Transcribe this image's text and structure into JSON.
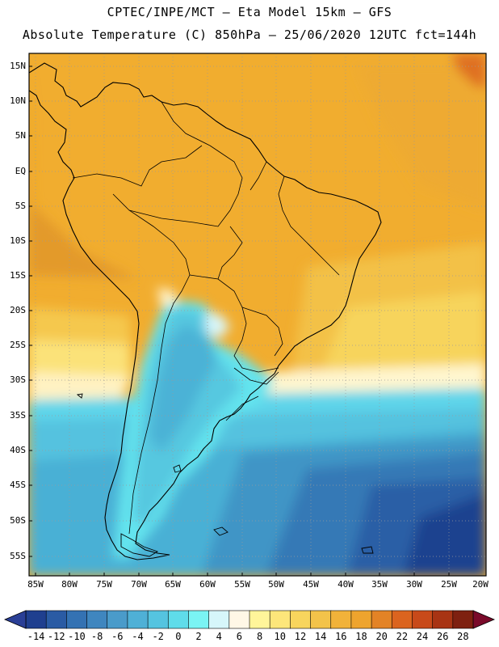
{
  "header": {
    "line1": "CPTEC/INPE/MCT –  Eta Model 15km – GFS",
    "line2": "Absolute Temperature (C) 850hPa – 25/06/2020 12UTC fct=144h"
  },
  "map": {
    "lat_labels": [
      "15N",
      "10N",
      "5N",
      "EQ",
      "5S",
      "10S",
      "15S",
      "20S",
      "25S",
      "30S",
      "35S",
      "40S",
      "45S",
      "50S",
      "55S"
    ],
    "lon_labels": [
      "85W",
      "80W",
      "75W",
      "70W",
      "65W",
      "60W",
      "55W",
      "50W",
      "45W",
      "40W",
      "35W",
      "30W",
      "25W",
      "20W"
    ],
    "region": "South America",
    "field": "temperature-850hPa"
  },
  "colorbar": {
    "labels": [
      "-14",
      "-12",
      "-10",
      "-8",
      "-6",
      "-4",
      "-2",
      "0",
      "2",
      "4",
      "6",
      "8",
      "10",
      "12",
      "14",
      "16",
      "18",
      "20",
      "22",
      "24",
      "26",
      "28"
    ],
    "colors": [
      "#1f3f8f",
      "#2a5ba4",
      "#3472b3",
      "#3f86bf",
      "#4a9bca",
      "#4fb0d6",
      "#55c4e0",
      "#5fdcea",
      "#7af4f4",
      "#d6f6fa",
      "#fff7e6",
      "#fff59a",
      "#fde67a",
      "#f8d55d",
      "#f3c34a",
      "#f1b23a",
      "#eea42e",
      "#e38326",
      "#db641f",
      "#c84a1a",
      "#a83414",
      "#7e2010"
    ]
  }
}
